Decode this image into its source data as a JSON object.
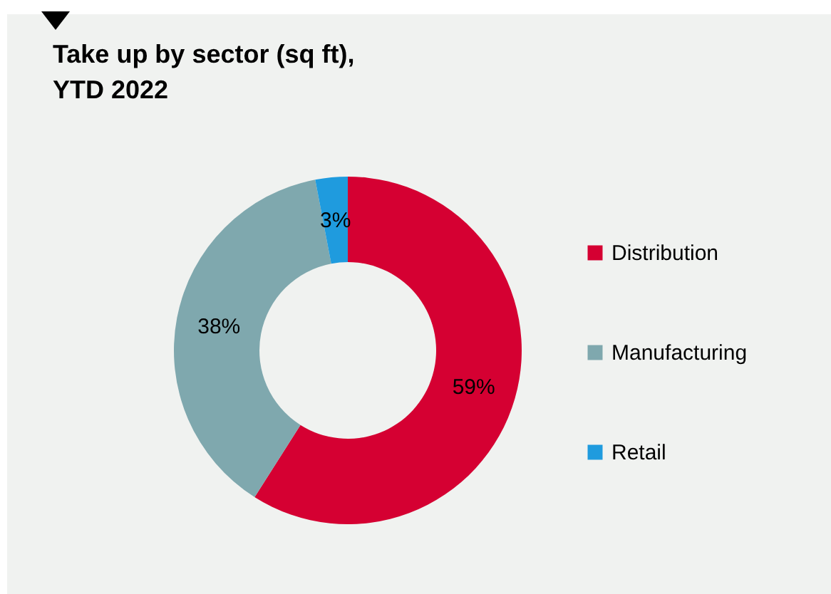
{
  "chart_data": {
    "type": "donut",
    "title": "Take up by sector (sq ft),\nYTD 2022",
    "categories": [
      "Distribution",
      "Manufacturing",
      "Retail"
    ],
    "values": [
      59,
      38,
      3
    ],
    "value_labels": [
      "59%",
      "38%",
      "3%"
    ],
    "colors": [
      "#d50032",
      "#7fa8ae",
      "#1f9bde"
    ],
    "legend": "right"
  }
}
